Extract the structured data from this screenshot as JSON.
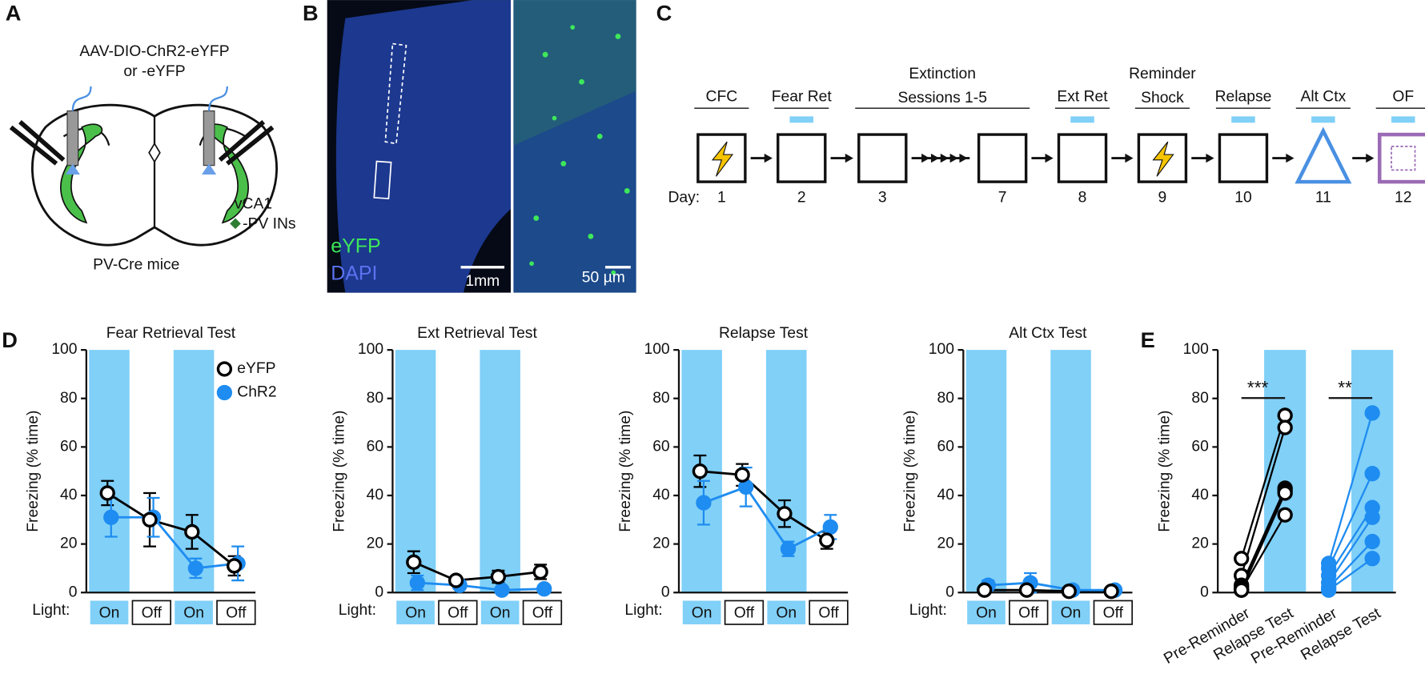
{
  "panel_labels": [
    "A",
    "B",
    "C",
    "D",
    "E"
  ],
  "panel_a": {
    "injection": [
      "AAV-DIO-ChR2-eYFP",
      "or -eYFP"
    ],
    "region": "vCA1",
    "cell_type": "-PV INs",
    "mice": "PV-Cre mice"
  },
  "panel_b": {
    "stain_1": "eYFP",
    "stain_2": "DAPI",
    "scale_1": "1mm",
    "scale_2": "50 µm"
  },
  "panel_c": {
    "day_label": "Day:",
    "light_color": "#80d0f8",
    "stages": [
      {
        "label": [
          "CFC"
        ],
        "days": [
          1
        ],
        "icon": "shock",
        "light": false
      },
      {
        "label": [
          "Fear Ret"
        ],
        "days": [
          2
        ],
        "icon": "box",
        "light": true
      },
      {
        "label": [
          "Extinction",
          "Sessions 1-5"
        ],
        "days": [
          3,
          7
        ],
        "icon": "box",
        "light": false
      },
      {
        "label": [
          "Ext Ret"
        ],
        "days": [
          8
        ],
        "icon": "box",
        "light": true
      },
      {
        "label": [
          "Reminder",
          "Shock"
        ],
        "days": [
          9
        ],
        "icon": "shock",
        "light": false
      },
      {
        "label": [
          "Relapse"
        ],
        "days": [
          10
        ],
        "icon": "box",
        "light": true
      },
      {
        "label": [
          "Alt Ctx"
        ],
        "days": [
          11
        ],
        "icon": "triangle",
        "light": true
      },
      {
        "label": [
          "OF"
        ],
        "days": [
          12
        ],
        "icon": "open-field",
        "light": true
      }
    ]
  },
  "chart_data": [
    {
      "type": "line",
      "title": "Fear Retrieval Test",
      "ylabel": "Freezing (% time)",
      "x_label": "Light:",
      "categories": [
        "On",
        "Off",
        "On",
        "Off"
      ],
      "shaded": [
        true,
        false,
        true,
        false
      ],
      "shade_color": "#80d0f8",
      "ylim": [
        0,
        100
      ],
      "yticks": [
        0,
        20,
        40,
        60,
        80,
        100
      ],
      "legend": true,
      "series": [
        {
          "name": "eYFP",
          "color": "#000000",
          "fill": "#ffffff",
          "values": [
            41,
            30,
            25,
            11
          ],
          "errors": [
            5,
            11,
            7,
            4
          ]
        },
        {
          "name": "ChR2",
          "color": "#1e8cf0",
          "fill": "#1e8cf0",
          "values": [
            31,
            31,
            10,
            12
          ],
          "errors": [
            8,
            8,
            4,
            7
          ]
        }
      ]
    },
    {
      "type": "line",
      "title": "Ext Retrieval Test",
      "ylabel": "Freezing (% time)",
      "x_label": "Light:",
      "categories": [
        "On",
        "Off",
        "On",
        "Off"
      ],
      "shaded": [
        true,
        false,
        true,
        false
      ],
      "shade_color": "#80d0f8",
      "ylim": [
        0,
        100
      ],
      "yticks": [
        0,
        20,
        40,
        60,
        80,
        100
      ],
      "legend": false,
      "series": [
        {
          "color": "#000000",
          "fill": "#ffffff",
          "values": [
            12.5,
            5,
            6.5,
            8.5
          ],
          "errors": [
            4.5,
            1,
            2.5,
            3
          ]
        },
        {
          "color": "#1e8cf0",
          "fill": "#1e8cf0",
          "values": [
            4,
            3,
            1,
            1.5
          ],
          "errors": [
            3,
            1,
            1,
            1
          ]
        }
      ]
    },
    {
      "type": "line",
      "title": "Relapse Test",
      "ylabel": "Freezing (% time)",
      "x_label": "Light:",
      "categories": [
        "On",
        "Off",
        "On",
        "Off"
      ],
      "shaded": [
        true,
        false,
        true,
        false
      ],
      "shade_color": "#80d0f8",
      "ylim": [
        0,
        100
      ],
      "yticks": [
        0,
        20,
        40,
        60,
        80,
        100
      ],
      "legend": false,
      "series": [
        {
          "color": "#000000",
          "fill": "#ffffff",
          "values": [
            50,
            48.5,
            32.5,
            21.5
          ],
          "errors": [
            6.5,
            4.5,
            5.5,
            3.5
          ]
        },
        {
          "color": "#1e8cf0",
          "fill": "#1e8cf0",
          "values": [
            37,
            43.5,
            18,
            27
          ],
          "errors": [
            9,
            8,
            3,
            5
          ]
        }
      ]
    },
    {
      "type": "line",
      "title": "Alt Ctx Test",
      "ylabel": "Freezing (% time)",
      "x_label": "Light:",
      "categories": [
        "On",
        "Off",
        "On",
        "Off"
      ],
      "shaded": [
        true,
        false,
        true,
        false
      ],
      "shade_color": "#80d0f8",
      "ylim": [
        0,
        100
      ],
      "yticks": [
        0,
        20,
        40,
        60,
        80,
        100
      ],
      "legend": false,
      "series": [
        {
          "color": "#000000",
          "fill": "#ffffff",
          "values": [
            1,
            1,
            0.5,
            0.5
          ],
          "errors": [
            1,
            1,
            0.5,
            0.5
          ]
        },
        {
          "color": "#1e8cf0",
          "fill": "#1e8cf0",
          "values": [
            3,
            4,
            1,
            1
          ],
          "errors": [
            2,
            4,
            1,
            1
          ]
        }
      ]
    },
    {
      "type": "paired",
      "ylabel": "Freezing (% time)",
      "categories": [
        "Pre-Reminder",
        "Relapse Test",
        "Pre-Reminder",
        "Relapse Test"
      ],
      "shaded": [
        false,
        true,
        false,
        true
      ],
      "shade_color": "#80d0f8",
      "ylim": [
        0,
        100
      ],
      "yticks": [
        0,
        20,
        40,
        60,
        80,
        100
      ],
      "series": [
        {
          "color": "#000000",
          "fill": "#ffffff",
          "values": [
            [
              14,
              73
            ],
            [
              7,
              68
            ],
            [
              3,
              43
            ],
            [
              2,
              42
            ],
            [
              1,
              41
            ],
            [
              1,
              32
            ]
          ]
        },
        {
          "color": "#1e8cf0",
          "fill": "#1e8cf0",
          "values": [
            [
              12,
              74
            ],
            [
              10,
              49
            ],
            [
              7,
              35
            ],
            [
              4,
              31
            ],
            [
              2,
              21
            ],
            [
              1,
              14
            ]
          ]
        }
      ],
      "annotations": [
        "***",
        "**"
      ]
    }
  ]
}
